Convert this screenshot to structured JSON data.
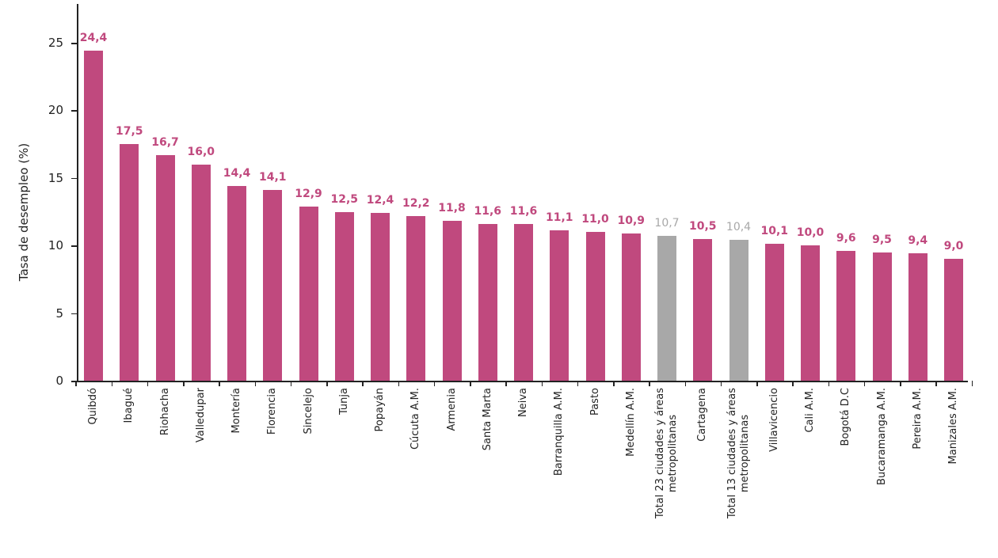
{
  "chart_data": {
    "type": "bar",
    "title": "",
    "xlabel": "",
    "ylabel": "Tasa de desempleo (%)",
    "ylim": [
      0,
      27
    ],
    "yticks": [
      0,
      5,
      10,
      15,
      20,
      25
    ],
    "grid": false,
    "legend": null,
    "colors": {
      "city": "#c0497e",
      "total": "#a8a8a8",
      "city_label": "#c0497e",
      "total_label": "#a8a8a8"
    },
    "categories": [
      "Quibdó",
      "Ibagué",
      "Riohacha",
      "Valledupar",
      "Montería",
      "Florencia",
      "Sincelejo",
      "Tunja",
      "Popayán",
      "Cúcuta A.M.",
      "Armenia",
      "Santa Marta",
      "Neiva",
      "Barranquilla A.M.",
      "Pasto",
      "Medellín A.M.",
      "Total 23 ciudades y áreas metropolitanas",
      "Cartagena",
      "Total 13 ciudades y áreas metropolitanas",
      "Villavicencio",
      "Cali A.M.",
      "Bogotá D.C",
      "Bucaramanga A.M.",
      "Pereira A.M.",
      "Manizales A.M."
    ],
    "values": [
      24.4,
      17.5,
      16.7,
      16.0,
      14.4,
      14.1,
      12.9,
      12.5,
      12.4,
      12.2,
      11.8,
      11.6,
      11.6,
      11.1,
      11.0,
      10.9,
      10.7,
      10.5,
      10.4,
      10.1,
      10.0,
      9.6,
      9.5,
      9.4,
      9.0
    ],
    "value_labels": [
      "24,4",
      "17,5",
      "16,7",
      "16,0",
      "14,4",
      "14,1",
      "12,9",
      "12,5",
      "12,4",
      "12,2",
      "11,8",
      "11,6",
      "11,6",
      "11,1",
      "11,0",
      "10,9",
      "10,7",
      "10,5",
      "10,4",
      "10,1",
      "10,0",
      "9,6",
      "9,5",
      "9,4",
      "9,0"
    ],
    "highlight": [
      false,
      false,
      false,
      false,
      false,
      false,
      false,
      false,
      false,
      false,
      false,
      false,
      false,
      false,
      false,
      false,
      true,
      false,
      true,
      false,
      false,
      false,
      false,
      false,
      false
    ],
    "label_lines": [
      [
        "Quibdó"
      ],
      [
        "Ibagué"
      ],
      [
        "Riohacha"
      ],
      [
        "Valledupar"
      ],
      [
        "Montería"
      ],
      [
        "Florencia"
      ],
      [
        "Sincelejo"
      ],
      [
        "Tunja"
      ],
      [
        "Popayán"
      ],
      [
        "Cúcuta A.M."
      ],
      [
        "Armenia"
      ],
      [
        "Santa Marta"
      ],
      [
        "Neiva"
      ],
      [
        "Barranquilla A.M."
      ],
      [
        "Pasto"
      ],
      [
        "Medellín A.M."
      ],
      [
        "Total 23 ciudades y áreas",
        "metropolitanas"
      ],
      [
        "Cartagena"
      ],
      [
        "Total 13 ciudades y áreas",
        "metropolitanas"
      ],
      [
        "Villavicencio"
      ],
      [
        "Cali A.M."
      ],
      [
        "Bogotá D.C"
      ],
      [
        "Bucaramanga A.M."
      ],
      [
        "Pereira A.M."
      ],
      [
        "Manizales A.M."
      ]
    ]
  }
}
